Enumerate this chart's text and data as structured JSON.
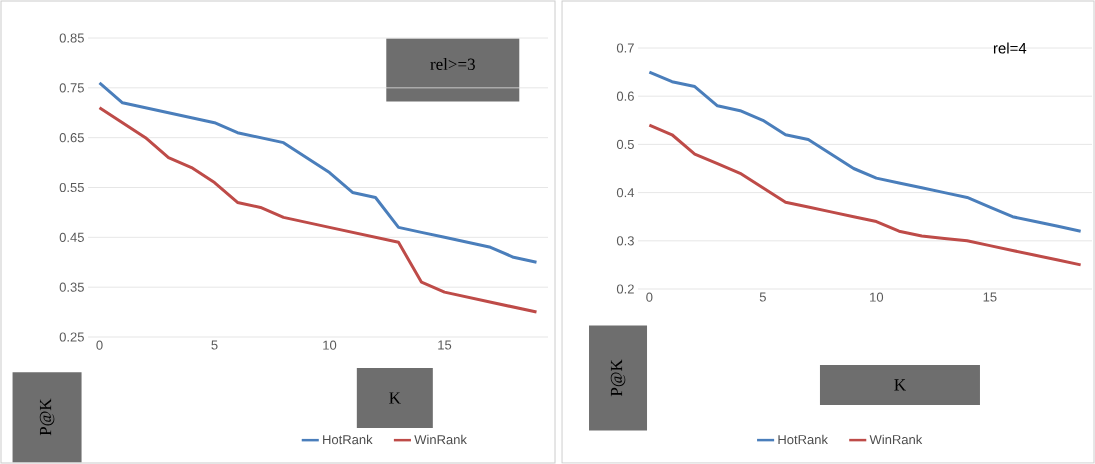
{
  "chart_data": [
    {
      "type": "line",
      "title": "rel>=3",
      "xlabel": "K",
      "ylabel": "P@K",
      "x": [
        0,
        1,
        2,
        3,
        4,
        5,
        6,
        7,
        8,
        9,
        10,
        11,
        12,
        13,
        14,
        15,
        16,
        17,
        18,
        19
      ],
      "xlim": [
        -0.5,
        19.5
      ],
      "xticks": [
        0,
        5,
        10,
        15
      ],
      "ylim": [
        0.25,
        0.85
      ],
      "yticks": [
        0.25,
        0.35,
        0.45,
        0.55,
        0.65,
        0.75,
        0.85
      ],
      "grid": "y",
      "legend": "bottom",
      "series": [
        {
          "name": "HotRank",
          "color": "#4a7ebb",
          "values": [
            0.76,
            0.72,
            0.71,
            0.7,
            0.69,
            0.68,
            0.66,
            0.65,
            0.64,
            0.61,
            0.58,
            0.54,
            0.53,
            0.47,
            0.46,
            0.45,
            0.44,
            0.43,
            0.41,
            0.4
          ]
        },
        {
          "name": "WinRank",
          "color": "#be4b48",
          "values": [
            0.71,
            0.68,
            0.65,
            0.61,
            0.59,
            0.56,
            0.52,
            0.51,
            0.49,
            0.48,
            0.47,
            0.46,
            0.45,
            0.44,
            0.36,
            0.34,
            0.33,
            0.32,
            0.31,
            0.3
          ]
        }
      ]
    },
    {
      "type": "line",
      "title": "rel=4",
      "xlabel": "K",
      "ylabel": "P@K",
      "x": [
        0,
        1,
        2,
        3,
        4,
        5,
        6,
        7,
        8,
        9,
        10,
        11,
        12,
        13,
        14,
        15,
        16,
        17,
        18,
        19
      ],
      "xlim": [
        -0.5,
        19.5
      ],
      "xticks": [
        0,
        5,
        10,
        15
      ],
      "ylim": [
        0.2,
        0.7
      ],
      "yticks": [
        0.2,
        0.3,
        0.4,
        0.5,
        0.6,
        0.7
      ],
      "grid": "y",
      "legend": "bottom",
      "series": [
        {
          "name": "HotRank",
          "color": "#4a7ebb",
          "values": [
            0.65,
            0.63,
            0.62,
            0.58,
            0.57,
            0.55,
            0.52,
            0.51,
            0.48,
            0.45,
            0.43,
            0.42,
            0.41,
            0.4,
            0.39,
            0.37,
            0.35,
            0.34,
            0.33,
            0.32
          ]
        },
        {
          "name": "WinRank",
          "color": "#be4b48",
          "values": [
            0.54,
            0.52,
            0.48,
            0.46,
            0.44,
            0.41,
            0.38,
            0.37,
            0.36,
            0.35,
            0.34,
            0.32,
            0.31,
            0.305,
            0.3,
            0.29,
            0.28,
            0.27,
            0.26,
            0.25
          ]
        }
      ]
    }
  ]
}
